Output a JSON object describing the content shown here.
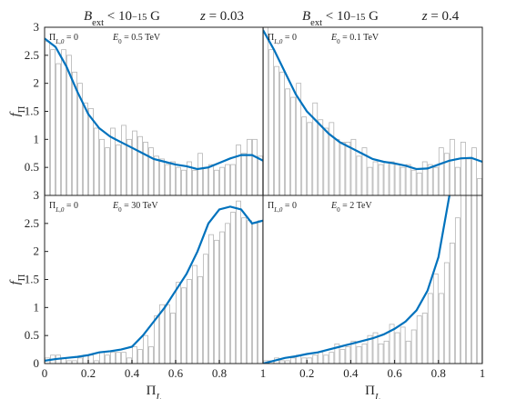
{
  "chart_data": [
    {
      "type": "histogram",
      "title": [
        {
          "text": "B",
          "italic": true
        },
        {
          "text": "ext",
          "shift": "sub"
        },
        {
          "text": " < 10"
        },
        {
          "text": "−15",
          "shift": "sup"
        },
        {
          "text": " G"
        }
      ],
      "subtitle": [
        {
          "text": "z",
          "italic": true
        },
        {
          "text": " = 0.03"
        }
      ],
      "ylabel": [
        {
          "text": "f",
          "italic": true
        },
        {
          "text": "Π",
          "shift": "sub"
        }
      ],
      "annotations": [
        [
          {
            "text": "Π"
          },
          {
            "text": "L,0",
            "shift": "sub",
            "italic": true
          },
          {
            "text": " = 0"
          }
        ],
        [
          {
            "text": "E",
            "italic": true
          },
          {
            "text": "0",
            "shift": "sub"
          },
          {
            "text": " = 0.5 TeV"
          }
        ]
      ],
      "bins": [
        0,
        0.025,
        0.05,
        0.075,
        0.1,
        0.125,
        0.15,
        0.175,
        0.2,
        0.225,
        0.25,
        0.275,
        0.3,
        0.325,
        0.35,
        0.375,
        0.4,
        0.425,
        0.45,
        0.475,
        0.5,
        0.525,
        0.55,
        0.575,
        0.6,
        0.625,
        0.65,
        0.675,
        0.7,
        0.725,
        0.75,
        0.775,
        0.8,
        0.825,
        0.85,
        0.875,
        0.9,
        0.925,
        0.95,
        0.975,
        1
      ],
      "counts": [
        2.75,
        2.6,
        2.35,
        2.6,
        2.5,
        2.2,
        2.0,
        1.65,
        1.55,
        1.2,
        1.0,
        0.85,
        1.2,
        0.9,
        1.25,
        1.0,
        1.15,
        1.05,
        0.95,
        0.85,
        0.7,
        0.65,
        0.55,
        0.6,
        0.5,
        0.45,
        0.6,
        0.45,
        0.75,
        0.5,
        0.55,
        0.45,
        0.5,
        0.55,
        0.55,
        0.9,
        0.75,
        1.0,
        1.0,
        0.7
      ],
      "curve": {
        "x": [
          0,
          0.05,
          0.1,
          0.15,
          0.2,
          0.25,
          0.3,
          0.35,
          0.4,
          0.45,
          0.5,
          0.55,
          0.6,
          0.65,
          0.7,
          0.75,
          0.8,
          0.85,
          0.9,
          0.95,
          1
        ],
        "values": [
          2.8,
          2.65,
          2.3,
          1.85,
          1.45,
          1.2,
          1.05,
          0.95,
          0.85,
          0.75,
          0.65,
          0.6,
          0.55,
          0.52,
          0.47,
          0.5,
          0.58,
          0.66,
          0.72,
          0.72,
          0.62
        ]
      },
      "bar_color": "#b5b5b5",
      "line_color": "#0072bd",
      "xlim": [
        0,
        1
      ],
      "ylim": [
        0,
        3
      ],
      "yticks": [
        0.5,
        1,
        1.5,
        2,
        2.5,
        3
      ]
    },
    {
      "type": "histogram",
      "title": [
        {
          "text": "B",
          "italic": true
        },
        {
          "text": "ext",
          "shift": "sub"
        },
        {
          "text": " < 10"
        },
        {
          "text": "−15",
          "shift": "sup"
        },
        {
          "text": " G"
        }
      ],
      "subtitle": [
        {
          "text": "z",
          "italic": true
        },
        {
          "text": " = 0.4"
        }
      ],
      "annotations": [
        [
          {
            "text": "Π"
          },
          {
            "text": "L,0",
            "shift": "sub",
            "italic": true
          },
          {
            "text": " = 0"
          }
        ],
        [
          {
            "text": "E",
            "italic": true
          },
          {
            "text": "0",
            "shift": "sub"
          },
          {
            "text": " = 0.1 TeV"
          }
        ]
      ],
      "bins": [
        0,
        0.025,
        0.05,
        0.075,
        0.1,
        0.125,
        0.15,
        0.175,
        0.2,
        0.225,
        0.25,
        0.275,
        0.3,
        0.325,
        0.35,
        0.375,
        0.4,
        0.425,
        0.45,
        0.475,
        0.5,
        0.525,
        0.55,
        0.575,
        0.6,
        0.625,
        0.65,
        0.675,
        0.7,
        0.725,
        0.75,
        0.775,
        0.8,
        0.825,
        0.85,
        0.875,
        0.9,
        0.925,
        0.95,
        0.975,
        1
      ],
      "counts": [
        3.0,
        2.6,
        2.3,
        2.2,
        1.9,
        1.75,
        2.0,
        1.4,
        1.3,
        1.65,
        1.35,
        1.2,
        1.3,
        1.0,
        0.95,
        0.95,
        1.0,
        0.7,
        0.85,
        0.5,
        0.6,
        0.55,
        0.6,
        0.6,
        0.55,
        0.5,
        0.55,
        0.45,
        0.4,
        0.6,
        0.55,
        0.5,
        0.85,
        0.75,
        1.0,
        0.5,
        0.95,
        0.65,
        0.85,
        0.3
      ],
      "curve": {
        "x": [
          0,
          0.05,
          0.1,
          0.15,
          0.2,
          0.25,
          0.3,
          0.35,
          0.4,
          0.45,
          0.5,
          0.55,
          0.6,
          0.65,
          0.7,
          0.75,
          0.8,
          0.85,
          0.9,
          0.95,
          1
        ],
        "values": [
          2.95,
          2.6,
          2.2,
          1.8,
          1.5,
          1.3,
          1.1,
          0.95,
          0.85,
          0.75,
          0.65,
          0.6,
          0.57,
          0.53,
          0.47,
          0.48,
          0.55,
          0.62,
          0.66,
          0.67,
          0.6
        ]
      },
      "bar_color": "#b5b5b5",
      "line_color": "#0072bd",
      "xlim": [
        0,
        1
      ],
      "ylim": [
        0,
        3
      ]
    },
    {
      "type": "histogram",
      "ylabel": [
        {
          "text": "f",
          "italic": true
        },
        {
          "text": "Π",
          "shift": "sub"
        }
      ],
      "xlabel": [
        {
          "text": "Π"
        },
        {
          "text": "L",
          "shift": "sub",
          "italic": true
        }
      ],
      "annotations": [
        [
          {
            "text": "Π"
          },
          {
            "text": "L,0",
            "shift": "sub",
            "italic": true
          },
          {
            "text": " = 0"
          }
        ],
        [
          {
            "text": "E",
            "italic": true
          },
          {
            "text": "0",
            "shift": "sub"
          },
          {
            "text": " = 30 TeV"
          }
        ]
      ],
      "bins": [
        0,
        0.025,
        0.05,
        0.075,
        0.1,
        0.125,
        0.15,
        0.175,
        0.2,
        0.225,
        0.25,
        0.275,
        0.3,
        0.325,
        0.35,
        0.375,
        0.4,
        0.425,
        0.45,
        0.475,
        0.5,
        0.525,
        0.55,
        0.575,
        0.6,
        0.625,
        0.65,
        0.675,
        0.7,
        0.725,
        0.75,
        0.775,
        0.8,
        0.825,
        0.85,
        0.875,
        0.9,
        0.925,
        0.95,
        0.975,
        1
      ],
      "counts": [
        0.1,
        0.15,
        0.15,
        0.1,
        0.05,
        0.05,
        0.1,
        0.15,
        0.15,
        0.05,
        0.2,
        0.15,
        0.2,
        0.2,
        0.2,
        0.1,
        0.3,
        0.25,
        0.5,
        0.3,
        0.85,
        1.05,
        1.05,
        0.9,
        1.45,
        1.35,
        1.5,
        1.75,
        1.55,
        1.95,
        2.3,
        2.2,
        2.35,
        2.5,
        2.7,
        2.9,
        2.6,
        2.55,
        2.5,
        2.55
      ],
      "curve": {
        "x": [
          0,
          0.05,
          0.1,
          0.15,
          0.2,
          0.25,
          0.3,
          0.35,
          0.4,
          0.45,
          0.5,
          0.55,
          0.6,
          0.65,
          0.7,
          0.75,
          0.8,
          0.85,
          0.9,
          0.95,
          1
        ],
        "values": [
          0.05,
          0.08,
          0.1,
          0.12,
          0.15,
          0.2,
          0.22,
          0.25,
          0.3,
          0.5,
          0.75,
          1.0,
          1.3,
          1.6,
          2.0,
          2.5,
          2.75,
          2.8,
          2.75,
          2.5,
          2.55
        ]
      },
      "bar_color": "#b5b5b5",
      "line_color": "#0072bd",
      "xlim": [
        0,
        1
      ],
      "ylim": [
        0,
        3
      ],
      "yticks": [
        0,
        0.5,
        1,
        1.5,
        2,
        2.5,
        3
      ],
      "xticks": [
        0,
        0.2,
        0.4,
        0.6,
        0.8,
        1
      ]
    },
    {
      "type": "histogram",
      "xlabel": [
        {
          "text": "Π"
        },
        {
          "text": "L",
          "shift": "sub",
          "italic": true
        }
      ],
      "annotations": [
        [
          {
            "text": "Π"
          },
          {
            "text": "L,0",
            "shift": "sub",
            "italic": true
          },
          {
            "text": " = 0"
          }
        ],
        [
          {
            "text": "E",
            "italic": true
          },
          {
            "text": "0",
            "shift": "sub"
          },
          {
            "text": " = 2 TeV"
          }
        ]
      ],
      "bins": [
        0,
        0.025,
        0.05,
        0.075,
        0.1,
        0.125,
        0.15,
        0.175,
        0.2,
        0.225,
        0.25,
        0.275,
        0.3,
        0.325,
        0.35,
        0.375,
        0.4,
        0.425,
        0.45,
        0.475,
        0.5,
        0.525,
        0.55,
        0.575,
        0.6,
        0.625,
        0.65,
        0.675,
        0.7,
        0.725,
        0.75,
        0.775,
        0.8,
        0.825,
        0.85,
        0.875,
        0.9,
        0.925,
        0.95,
        0.975,
        1
      ],
      "counts": [
        0.05,
        0.05,
        0.1,
        0.05,
        0.05,
        0.1,
        0.15,
        0.1,
        0.1,
        0.15,
        0.2,
        0.15,
        0.2,
        0.35,
        0.25,
        0.3,
        0.4,
        0.3,
        0.35,
        0.5,
        0.55,
        0.35,
        0.4,
        0.7,
        0.55,
        0.65,
        0.4,
        0.6,
        0.85,
        0.9,
        1.25,
        1.6,
        1.25,
        1.8,
        2.15,
        2.6,
        3.0,
        3.0,
        3.0,
        3.0
      ],
      "curve": {
        "x": [
          0,
          0.05,
          0.1,
          0.15,
          0.2,
          0.25,
          0.3,
          0.35,
          0.4,
          0.45,
          0.5,
          0.55,
          0.6,
          0.65,
          0.7,
          0.75,
          0.8,
          0.85,
          0.9,
          0.95,
          1
        ],
        "values": [
          0,
          0.05,
          0.1,
          0.13,
          0.17,
          0.2,
          0.25,
          0.3,
          0.35,
          0.4,
          0.45,
          0.52,
          0.62,
          0.75,
          0.95,
          1.3,
          1.9,
          3.0,
          null,
          null,
          null
        ]
      },
      "bar_color": "#b5b5b5",
      "line_color": "#0072bd",
      "xlim": [
        0,
        1
      ],
      "ylim": [
        0,
        3
      ],
      "xticks": [
        0.2,
        0.4,
        0.6,
        0.8,
        1
      ]
    }
  ]
}
